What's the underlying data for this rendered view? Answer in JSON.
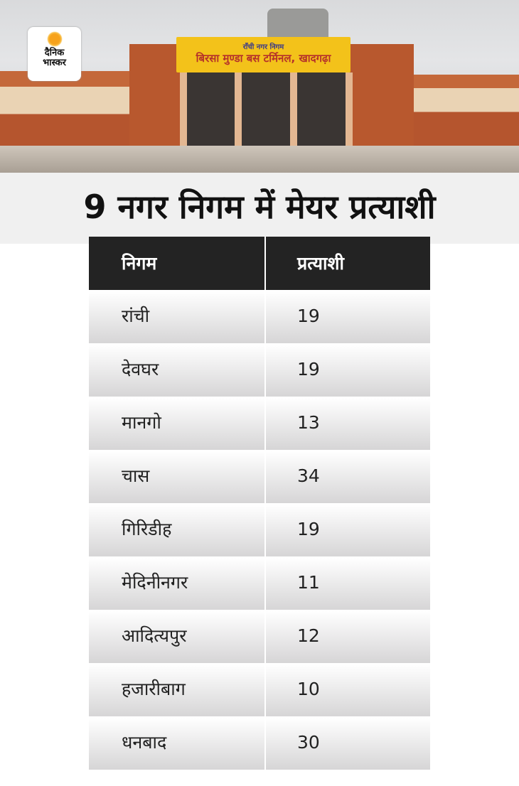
{
  "photo": {
    "sign_line1": "राँची नगर निगम",
    "sign_line2": "बिरसा मुण्डा बस टर्मिनल, खादगढ़ा"
  },
  "logo": {
    "line1": "दैनिक",
    "line2": "भास्कर"
  },
  "title": "9 नगर निगम में मेयर प्रत्याशी",
  "table": {
    "headers": [
      "निगम",
      "प्रत्याशी"
    ],
    "rows": [
      {
        "name": "रांची",
        "count": "19"
      },
      {
        "name": "देवघर",
        "count": "19"
      },
      {
        "name": "मानगो",
        "count": "13"
      },
      {
        "name": "चास",
        "count": "34"
      },
      {
        "name": "गिरिडीह",
        "count": "19"
      },
      {
        "name": "मेदिनीनगर",
        "count": "11"
      },
      {
        "name": "आदित्यपुर",
        "count": "12"
      },
      {
        "name": "हजारीबाग",
        "count": "10"
      },
      {
        "name": "धनबाद",
        "count": "30"
      }
    ]
  },
  "colors": {
    "header_bg": "#232323",
    "band_bg": "#f0f0f0",
    "logo_sun": "#f7a21b"
  }
}
